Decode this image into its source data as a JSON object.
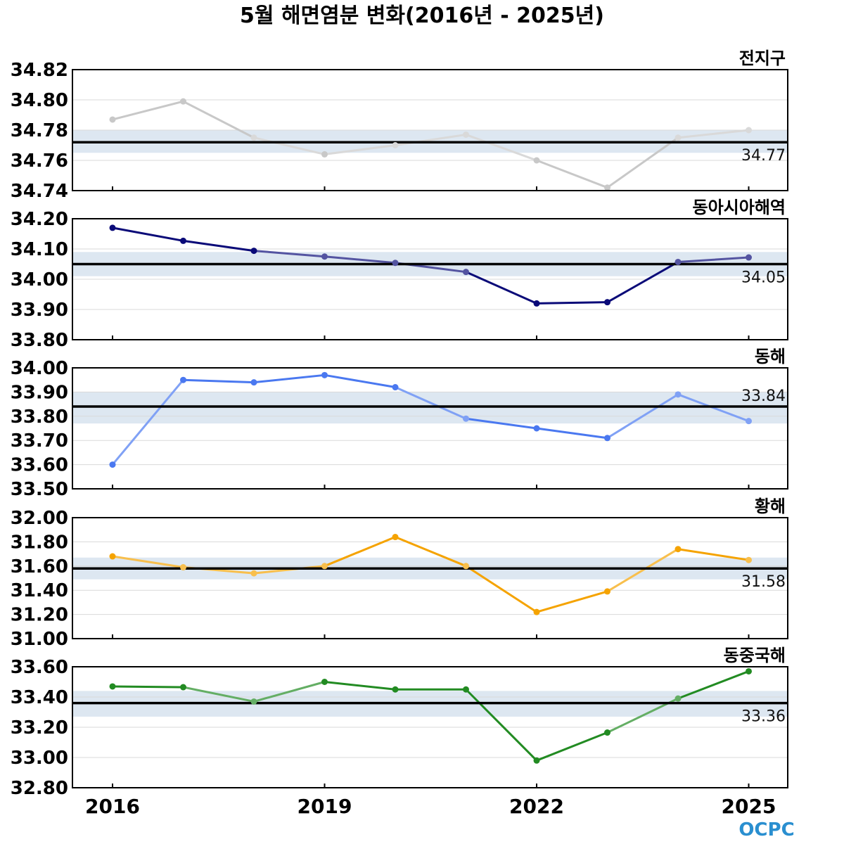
{
  "title": "5월 해면염분 변화(2016년 - 2025년)",
  "logo": "OCPC",
  "chart_data": [
    {
      "type": "line",
      "label": "전지구",
      "x": [
        2016,
        2017,
        2018,
        2019,
        2020,
        2021,
        2022,
        2023,
        2024,
        2025
      ],
      "values": [
        34.787,
        34.799,
        34.775,
        34.764,
        34.77,
        34.777,
        34.76,
        34.742,
        34.775,
        34.78
      ],
      "mean": 34.772,
      "mean_label": "34.77",
      "band": [
        34.765,
        34.78
      ],
      "ylim": [
        34.74,
        34.82
      ],
      "yticks": [
        "34.74",
        "34.76",
        "34.78",
        "34.80",
        "34.82"
      ],
      "color": "#c8c8c8"
    },
    {
      "type": "line",
      "label": "동아시아해역",
      "x": [
        2016,
        2017,
        2018,
        2019,
        2020,
        2021,
        2022,
        2023,
        2024,
        2025
      ],
      "values": [
        34.17,
        34.127,
        34.094,
        34.075,
        34.054,
        34.024,
        33.92,
        33.924,
        34.057,
        34.072
      ],
      "mean": 34.05,
      "mean_label": "34.05",
      "band": [
        34.01,
        34.09
      ],
      "ylim": [
        33.8,
        34.2
      ],
      "yticks": [
        "33.80",
        "33.90",
        "34.00",
        "34.10",
        "34.20"
      ],
      "color": "#0a0a78"
    },
    {
      "type": "line",
      "label": "동해",
      "x": [
        2016,
        2017,
        2018,
        2019,
        2020,
        2021,
        2022,
        2023,
        2024,
        2025
      ],
      "values": [
        33.6,
        33.95,
        33.94,
        33.97,
        33.92,
        33.79,
        33.75,
        33.71,
        33.89,
        33.78
      ],
      "mean": 33.84,
      "mean_label": "33.84",
      "band": [
        33.77,
        33.9
      ],
      "ylim": [
        33.5,
        34.0
      ],
      "yticks": [
        "33.50",
        "33.60",
        "33.70",
        "33.80",
        "33.90",
        "34.00"
      ],
      "color": "#4a78f0"
    },
    {
      "type": "line",
      "label": "황해",
      "x": [
        2016,
        2017,
        2018,
        2019,
        2020,
        2021,
        2022,
        2023,
        2024,
        2025
      ],
      "values": [
        31.68,
        31.59,
        31.54,
        31.6,
        31.84,
        31.6,
        31.22,
        31.39,
        31.74,
        31.65
      ],
      "mean": 31.58,
      "mean_label": "31.58",
      "band": [
        31.49,
        31.67
      ],
      "ylim": [
        31.0,
        32.0
      ],
      "yticks": [
        "31.00",
        "31.20",
        "31.40",
        "31.60",
        "31.80",
        "32.00"
      ],
      "color": "#f5a300"
    },
    {
      "type": "line",
      "label": "동중국해",
      "x": [
        2016,
        2017,
        2018,
        2019,
        2020,
        2021,
        2022,
        2023,
        2024,
        2025
      ],
      "values": [
        33.47,
        33.465,
        33.37,
        33.5,
        33.45,
        33.45,
        32.98,
        33.165,
        33.39,
        33.57
      ],
      "mean": 33.36,
      "mean_label": "33.36",
      "band": [
        33.27,
        33.44
      ],
      "ylim": [
        32.8,
        33.6
      ],
      "yticks": [
        "32.80",
        "33.00",
        "33.20",
        "33.40",
        "33.60"
      ],
      "color": "#228b22"
    }
  ],
  "xticks": [
    "2016",
    "2019",
    "2022",
    "2025"
  ]
}
